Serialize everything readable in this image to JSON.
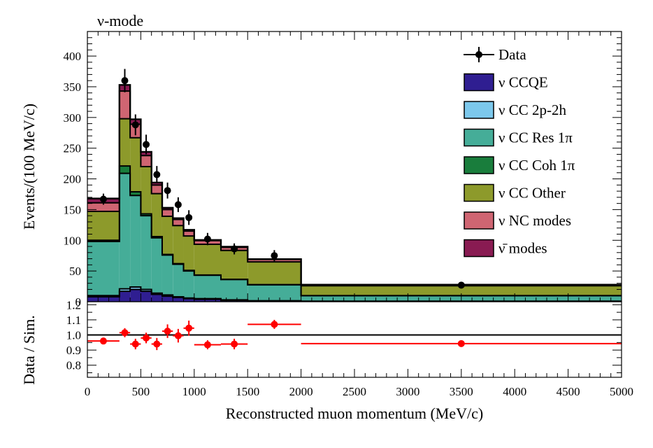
{
  "chart_data": [
    {
      "type": "bar",
      "stacked": true,
      "title": "ν-mode",
      "xlabel": "",
      "ylabel": "Events/(100 MeV/c)",
      "xlim": [
        0,
        5000
      ],
      "ylim": [
        0,
        440
      ],
      "xticks": [
        0,
        500,
        1000,
        1500,
        2000,
        2500,
        3000,
        3500,
        4000,
        4500,
        5000
      ],
      "yticks": [
        0,
        50,
        100,
        150,
        200,
        250,
        300,
        350,
        400
      ],
      "bin_edges": [
        0,
        300,
        400,
        500,
        600,
        700,
        800,
        900,
        1000,
        1250,
        1500,
        2000,
        5000
      ],
      "series": [
        {
          "name": "ν CCQE",
          "color": "#2f1e91",
          "values": [
            8,
            17,
            20,
            17,
            12,
            9,
            7,
            5,
            4,
            2,
            1,
            0.5
          ]
        },
        {
          "name": "ν CC 2p-2h",
          "color": "#7cc8ec",
          "values": [
            2,
            4,
            4,
            3,
            2,
            2,
            1,
            1,
            1,
            1,
            0.5,
            0.3
          ]
        },
        {
          "name": "ν CC Res 1π",
          "color": "#45ad98",
          "values": [
            88,
            188,
            149,
            120,
            90,
            65,
            53,
            44,
            38,
            33,
            26,
            9
          ]
        },
        {
          "name": "ν CC Coh 1π",
          "color": "#197d3c",
          "values": [
            2,
            12,
            6,
            3,
            2,
            1,
            1,
            1,
            0.5,
            0.5,
            0.3,
            0.1
          ]
        },
        {
          "name": "ν CC Other",
          "color": "#8d9a2b",
          "values": [
            47,
            77,
            88,
            77,
            70,
            62,
            62,
            56,
            50,
            47,
            37,
            16
          ]
        },
        {
          "name": "ν NC modes",
          "color": "#cf6572",
          "values": [
            14,
            45,
            22,
            18,
            14,
            11,
            10,
            8,
            6,
            5,
            4,
            1.5
          ]
        },
        {
          "name": "ν̄ modes",
          "color": "#891b52",
          "values": [
            7,
            10,
            8,
            6,
            4,
            3,
            2,
            2,
            1,
            1,
            0.5,
            0.3
          ]
        }
      ],
      "data_points": {
        "name": "Data",
        "x": [
          150,
          350,
          450,
          550,
          650,
          750,
          850,
          950,
          1125,
          1375,
          1750,
          3500
        ],
        "y": [
          167,
          360,
          288,
          256,
          207,
          181,
          158,
          137,
          102,
          86,
          75,
          27
        ],
        "yerr": [
          9,
          19,
          17,
          16,
          14,
          13,
          12,
          12,
          10,
          9,
          9,
          5
        ]
      },
      "legend": {
        "placement": "top-right",
        "entries": [
          "Data",
          "ν CCQE",
          "ν CC 2p-2h",
          "ν CC Res 1π",
          "ν CC Coh 1π",
          "ν CC Other",
          "ν NC modes",
          "ν̄ modes"
        ]
      }
    },
    {
      "type": "scatter",
      "title": "",
      "xlabel": "Reconstructed muon momentum (MeV/c)",
      "ylabel": "Data / Sim.",
      "xlim": [
        0,
        5000
      ],
      "ylim": [
        0.72,
        1.22
      ],
      "xticks": [
        0,
        500,
        1000,
        1500,
        2000,
        2500,
        3000,
        3500,
        4000,
        4500,
        5000
      ],
      "ytick_labels": [
        "0.8",
        "0.9",
        "1.0",
        "1.1",
        "1.2"
      ],
      "yticks": [
        0.8,
        0.9,
        1.0,
        1.1,
        1.2
      ],
      "reference_line": 1.0,
      "color": "#ff0000",
      "x": [
        150,
        350,
        450,
        550,
        650,
        750,
        850,
        950,
        1125,
        1375,
        1750,
        3500
      ],
      "xlo": [
        0,
        300,
        400,
        500,
        600,
        700,
        800,
        900,
        1000,
        1250,
        1500,
        2000
      ],
      "xhi": [
        300,
        400,
        500,
        600,
        700,
        800,
        900,
        1000,
        1250,
        1500,
        2000,
        5000
      ],
      "y": [
        0.96,
        1.015,
        0.94,
        0.98,
        0.94,
        1.025,
        0.995,
        1.045,
        0.935,
        0.94,
        1.07,
        0.943
      ],
      "yerr": [
        0.02,
        0.03,
        0.035,
        0.035,
        0.04,
        0.045,
        0.045,
        0.05,
        0.03,
        0.035,
        0.03,
        0.015
      ]
    }
  ]
}
